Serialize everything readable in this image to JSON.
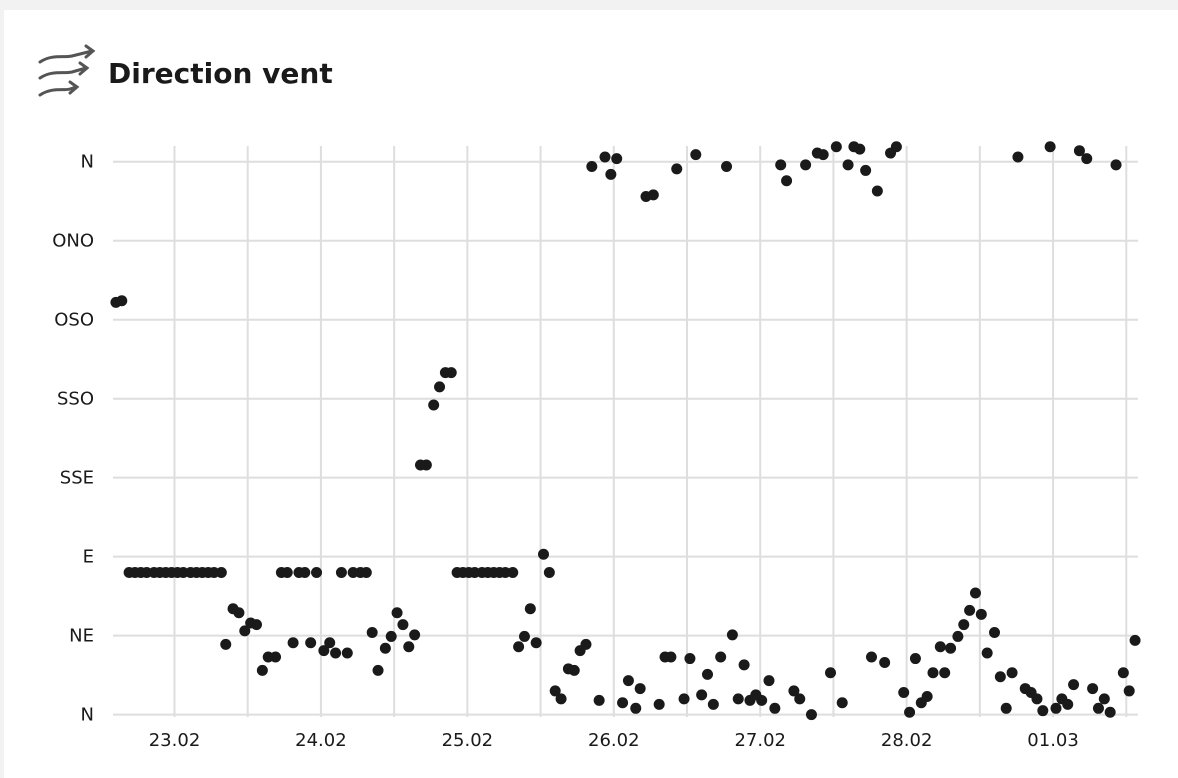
{
  "chart_data": {
    "type": "scatter",
    "title": "Direction vent",
    "color": "#1a1a1a",
    "grid": true,
    "xlim": [
      53.58,
      60.58
    ],
    "ylim": [
      -0.03,
      7.25
    ],
    "xticks": [
      {
        "value": 54,
        "label": "23.02"
      },
      {
        "value": 55,
        "label": "24.02"
      },
      {
        "value": 56,
        "label": "25.02"
      },
      {
        "value": 57,
        "label": "26.02"
      },
      {
        "value": 58,
        "label": "27.02"
      },
      {
        "value": 59,
        "label": "28.02"
      },
      {
        "value": 60,
        "label": "01.03"
      }
    ],
    "yticks": [
      {
        "value": 0,
        "label": "N"
      },
      {
        "value": 1,
        "label": "NE"
      },
      {
        "value": 2,
        "label": "E"
      },
      {
        "value": 3,
        "label": "SSE"
      },
      {
        "value": 4,
        "label": "SSO"
      },
      {
        "value": 5,
        "label": "OSO"
      },
      {
        "value": 6,
        "label": "ONO"
      },
      {
        "value": 7,
        "label": "N"
      }
    ],
    "x": [
      53.6,
      53.64,
      53.69,
      53.73,
      53.77,
      53.81,
      53.86,
      53.9,
      53.94,
      53.98,
      54.02,
      54.06,
      54.11,
      54.15,
      54.19,
      54.23,
      54.27,
      54.32,
      54.35,
      54.4,
      54.44,
      54.48,
      54.52,
      54.56,
      54.6,
      54.64,
      54.69,
      54.73,
      54.77,
      54.81,
      54.85,
      54.89,
      54.93,
      54.97,
      55.02,
      55.06,
      55.1,
      55.14,
      55.18,
      55.22,
      55.27,
      55.31,
      55.35,
      55.39,
      55.44,
      55.48,
      55.52,
      55.56,
      55.6,
      55.64,
      55.68,
      55.72,
      55.77,
      55.81,
      55.85,
      55.89,
      55.93,
      55.97,
      56.01,
      56.05,
      56.1,
      56.14,
      56.18,
      56.22,
      56.26,
      56.31,
      56.35,
      56.39,
      56.43,
      56.47,
      56.52,
      56.56,
      56.6,
      56.64,
      56.69,
      56.73,
      56.77,
      56.81,
      56.85,
      56.9,
      56.94,
      56.98,
      57.02,
      57.06,
      57.1,
      57.15,
      57.18,
      57.22,
      57.27,
      57.31,
      57.35,
      57.39,
      57.43,
      57.48,
      57.52,
      57.56,
      57.6,
      57.64,
      57.68,
      57.73,
      57.77,
      57.81,
      57.85,
      57.89,
      57.93,
      57.97,
      58.01,
      58.06,
      58.1,
      58.14,
      58.18,
      58.23,
      58.27,
      58.31,
      58.35,
      58.39,
      58.43,
      58.48,
      58.52,
      58.56,
      58.6,
      58.64,
      58.68,
      58.72,
      58.76,
      58.8,
      58.85,
      58.89,
      58.93,
      58.98,
      59.02,
      59.06,
      59.1,
      59.14,
      59.18,
      59.23,
      59.26,
      59.3,
      59.35,
      59.39,
      59.43,
      59.47,
      59.51,
      59.55,
      59.6,
      59.64,
      59.68,
      59.72,
      59.76,
      59.81,
      59.85,
      59.89,
      59.93,
      59.98,
      60.02,
      60.06,
      60.1,
      60.14,
      60.18,
      60.23,
      60.27,
      60.31,
      60.35,
      60.39,
      60.43,
      60.48,
      60.52,
      60.56
    ],
    "values": [
      5.22,
      5.24,
      1.8,
      1.8,
      1.8,
      1.8,
      1.8,
      1.8,
      1.8,
      1.8,
      1.8,
      1.8,
      1.8,
      1.8,
      1.8,
      1.8,
      1.8,
      1.8,
      0.89,
      1.34,
      1.29,
      1.06,
      1.16,
      1.14,
      0.56,
      0.73,
      0.73,
      1.8,
      1.8,
      0.91,
      1.8,
      1.8,
      0.91,
      1.8,
      0.81,
      0.91,
      0.78,
      1.8,
      0.78,
      1.8,
      1.8,
      1.8,
      1.04,
      0.56,
      0.84,
      0.99,
      1.29,
      1.14,
      0.86,
      1.01,
      3.16,
      3.16,
      3.92,
      4.15,
      4.33,
      4.33,
      1.8,
      1.8,
      1.8,
      1.8,
      1.8,
      1.8,
      1.8,
      1.8,
      1.8,
      1.8,
      0.86,
      0.99,
      1.34,
      0.91,
      2.03,
      1.8,
      0.3,
      0.2,
      0.58,
      0.56,
      0.81,
      0.89,
      6.94,
      0.18,
      7.06,
      6.84,
      7.04,
      0.15,
      0.43,
      0.08,
      0.33,
      6.56,
      6.58,
      0.13,
      0.73,
      0.73,
      6.91,
      0.2,
      0.71,
      7.09,
      0.25,
      0.51,
      0.13,
      0.73,
      6.94,
      1.01,
      0.2,
      0.63,
      0.18,
      0.25,
      0.18,
      0.43,
      0.08,
      6.96,
      6.76,
      0.3,
      0.2,
      6.96,
      0.0,
      7.11,
      7.09,
      0.53,
      7.19,
      0.15,
      6.96,
      7.19,
      7.16,
      6.89,
      0.73,
      6.63,
      0.66,
      7.11,
      7.19,
      0.28,
      0.03,
      0.71,
      0.15,
      0.23,
      0.53,
      0.86,
      0.53,
      0.84,
      0.99,
      1.14,
      1.32,
      1.54,
      1.27,
      0.78,
      1.04,
      0.48,
      0.08,
      0.53,
      7.06,
      0.33,
      0.28,
      0.2,
      0.05,
      7.19,
      0.08,
      0.2,
      0.13,
      0.38,
      7.14,
      7.04,
      0.33,
      0.08,
      0.2,
      0.03,
      6.96,
      0.53,
      0.3,
      0.94
    ]
  }
}
